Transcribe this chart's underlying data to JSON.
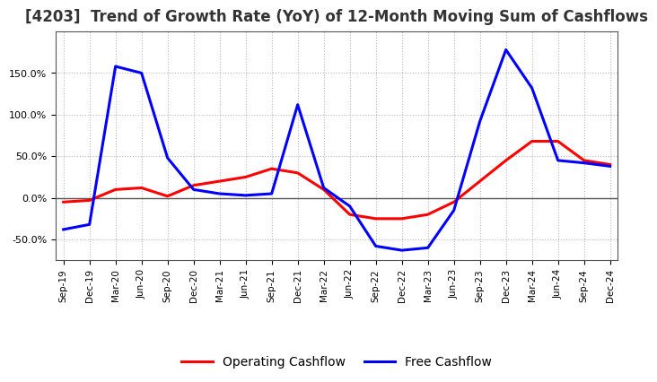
{
  "title": "[4203]  Trend of Growth Rate (YoY) of 12-Month Moving Sum of Cashflows",
  "x_labels": [
    "Sep-19",
    "Dec-19",
    "Mar-20",
    "Jun-20",
    "Sep-20",
    "Dec-20",
    "Mar-21",
    "Jun-21",
    "Sep-21",
    "Dec-21",
    "Mar-22",
    "Jun-22",
    "Sep-22",
    "Dec-22",
    "Mar-23",
    "Jun-23",
    "Sep-23",
    "Dec-23",
    "Mar-24",
    "Jun-24",
    "Sep-24",
    "Dec-24"
  ],
  "operating_cashflow": [
    -5,
    -3,
    10,
    12,
    2,
    15,
    20,
    25,
    35,
    30,
    10,
    -20,
    -25,
    -25,
    -20,
    -5,
    20,
    45,
    68,
    68,
    45,
    40
  ],
  "free_cashflow": [
    -38,
    -32,
    158,
    150,
    48,
    10,
    5,
    3,
    5,
    112,
    12,
    -10,
    -58,
    -63,
    -60,
    -15,
    92,
    178,
    132,
    45,
    42,
    38
  ],
  "operating_color": "#FF0000",
  "free_color": "#0000FF",
  "background_color": "#FFFFFF",
  "plot_bg_color": "#FFFFFF",
  "grid_color": "#888888",
  "ylim": [
    -75,
    200
  ],
  "yticks": [
    -50,
    0,
    50,
    100,
    150
  ],
  "legend_labels": [
    "Operating Cashflow",
    "Free Cashflow"
  ],
  "line_width": 2.2,
  "title_fontsize": 12,
  "title_color": "#333333"
}
